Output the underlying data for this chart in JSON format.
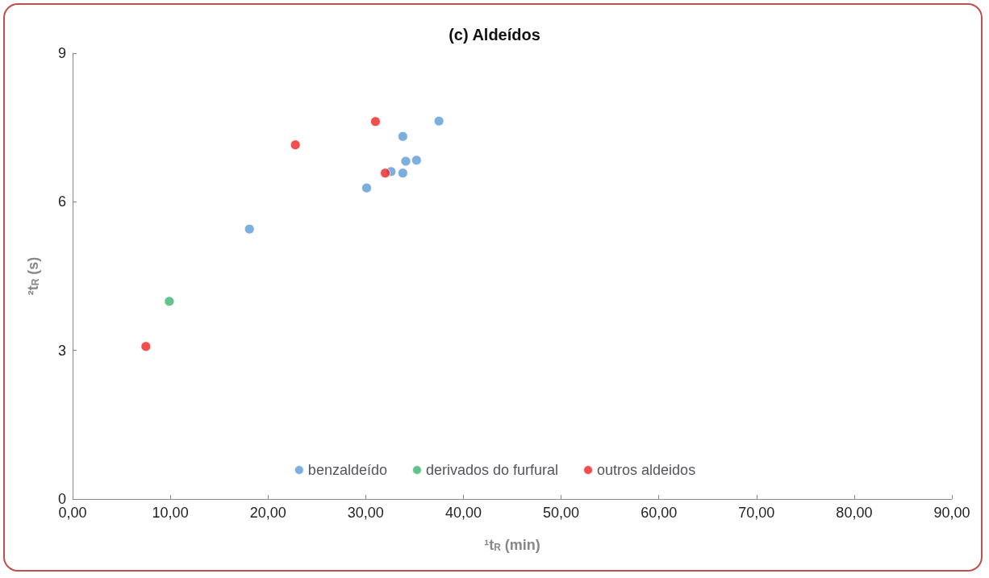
{
  "chart_data": {
    "type": "scatter",
    "title": "(c) Aldeídos",
    "xlabel": "¹t$_{R}$ (min)",
    "ylabel": "²t$_{R}$ (s)",
    "xlim": [
      0,
      90
    ],
    "xticks": [
      {
        "value": 0,
        "label": "0,00"
      },
      {
        "value": 10,
        "label": "10,00"
      },
      {
        "value": 20,
        "label": "20,00"
      },
      {
        "value": 30,
        "label": "30,00"
      },
      {
        "value": 40,
        "label": "40,00"
      },
      {
        "value": 50,
        "label": "50,00"
      },
      {
        "value": 60,
        "label": "60,00"
      },
      {
        "value": 70,
        "label": "70,00"
      },
      {
        "value": 80,
        "label": "80,00"
      },
      {
        "value": 90,
        "label": "90,00"
      }
    ],
    "ylim": [
      0,
      9
    ],
    "yticks": [
      0,
      3,
      6,
      9
    ],
    "grid": false,
    "legend": "bottom",
    "marker": "circle",
    "series": [
      {
        "name": "benzaldeído",
        "color": "#5b9bd5",
        "x": [
          18.1,
          30.1,
          32.6,
          33.8,
          34.1,
          35.2,
          33.8,
          37.5
        ],
        "values": [
          5.45,
          6.28,
          6.61,
          6.58,
          6.82,
          6.84,
          7.32,
          7.63
        ]
      },
      {
        "name": "derivados do furfural",
        "color": "#3cb371",
        "x": [
          9.9
        ],
        "values": [
          3.99
        ]
      },
      {
        "name": "outros aldeidos",
        "color": "#ee2222",
        "x": [
          7.5,
          22.8,
          31.0,
          32.0
        ],
        "values": [
          3.08,
          7.15,
          7.62,
          6.58
        ]
      }
    ]
  }
}
